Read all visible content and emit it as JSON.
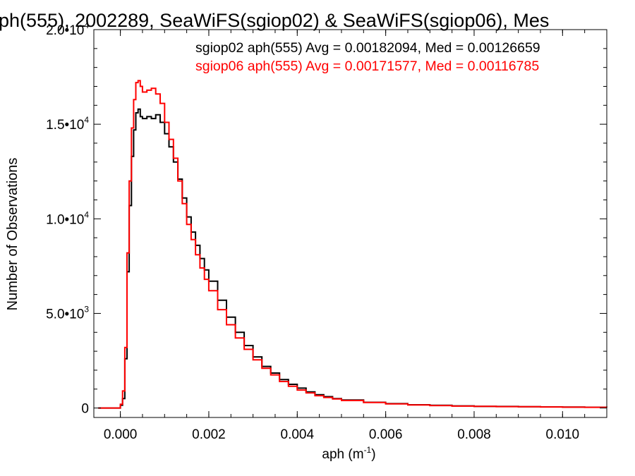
{
  "chart_data": {
    "type": "line",
    "title": "ph(555), 2002289, SeaWiFS(sgiop02) & SeaWiFS(sgiop06), Mes",
    "xlabel": "aph (m",
    "xlabel_sup": "-1",
    "xlabel_end": ")",
    "ylabel": "Number of Observations",
    "xlim": [
      -0.0006,
      0.011
    ],
    "ylim": [
      -500,
      20000
    ],
    "x_ticks": [
      {
        "value": 0.0,
        "label": "0.000"
      },
      {
        "value": 0.002,
        "label": "0.002"
      },
      {
        "value": 0.004,
        "label": "0.004"
      },
      {
        "value": 0.006,
        "label": "0.006"
      },
      {
        "value": 0.008,
        "label": "0.008"
      },
      {
        "value": 0.01,
        "label": "0.010"
      }
    ],
    "y_ticks": [
      {
        "value": 0,
        "label": "0",
        "exp": ""
      },
      {
        "value": 5000,
        "label": "5.0•10",
        "exp": "3"
      },
      {
        "value": 10000,
        "label": "1.0•10",
        "exp": "4"
      },
      {
        "value": 15000,
        "label": "1.5•10",
        "exp": "4"
      },
      {
        "value": 20000,
        "label": "2.0•10",
        "exp": "4"
      }
    ],
    "legend_position": "top-right",
    "series": [
      {
        "name": "sgiop02",
        "legend_text": "sgiop02 aph(555) Avg = 0.00182094, Med = 0.00126659",
        "color": "#000000",
        "x": [
          -0.0005,
          -0.0003,
          -0.0001,
          0.0,
          5e-05,
          0.0001,
          0.00015,
          0.0002,
          0.00025,
          0.0003,
          0.00035,
          0.0004,
          0.00045,
          0.0005,
          0.0006,
          0.0007,
          0.0008,
          0.0009,
          0.001,
          0.0011,
          0.0012,
          0.0013,
          0.0014,
          0.0015,
          0.0016,
          0.0017,
          0.0018,
          0.0019,
          0.002,
          0.0022,
          0.0024,
          0.0026,
          0.0028,
          0.003,
          0.0032,
          0.0034,
          0.0036,
          0.0038,
          0.004,
          0.0042,
          0.0044,
          0.0046,
          0.0048,
          0.005,
          0.0055,
          0.006,
          0.0065,
          0.007,
          0.0075,
          0.008,
          0.0085,
          0.009,
          0.0095,
          0.01,
          0.0105,
          0.011
        ],
        "y": [
          0,
          0,
          0,
          150,
          500,
          2600,
          7200,
          10700,
          13300,
          14700,
          15600,
          15800,
          15400,
          15300,
          15400,
          15300,
          15500,
          15100,
          14500,
          13800,
          13000,
          12100,
          11100,
          10100,
          9300,
          8600,
          7900,
          7300,
          6700,
          5700,
          4800,
          4000,
          3300,
          2700,
          2200,
          1850,
          1500,
          1250,
          1050,
          850,
          700,
          600,
          500,
          420,
          300,
          230,
          170,
          140,
          110,
          90,
          80,
          70,
          60,
          50,
          40,
          35
        ]
      },
      {
        "name": "sgiop06",
        "legend_text": "sgiop06 aph(555) Avg = 0.00171577, Med = 0.00116785",
        "color": "#ff0000",
        "x": [
          -0.0005,
          -0.0003,
          -0.0001,
          0.0,
          5e-05,
          0.0001,
          0.00015,
          0.0002,
          0.00025,
          0.0003,
          0.00035,
          0.0004,
          0.00045,
          0.0005,
          0.0006,
          0.0007,
          0.0008,
          0.0009,
          0.001,
          0.0011,
          0.0012,
          0.0013,
          0.0014,
          0.0015,
          0.0016,
          0.0017,
          0.0018,
          0.0019,
          0.002,
          0.0022,
          0.0024,
          0.0026,
          0.0028,
          0.003,
          0.0032,
          0.0034,
          0.0036,
          0.0038,
          0.004,
          0.0042,
          0.0044,
          0.0046,
          0.0048,
          0.005,
          0.0055,
          0.006,
          0.0065,
          0.007,
          0.0075,
          0.008,
          0.0085,
          0.009,
          0.0095,
          0.01,
          0.0105,
          0.011
        ],
        "y": [
          0,
          0,
          0,
          200,
          900,
          3200,
          8200,
          12000,
          14800,
          16300,
          17200,
          17300,
          17000,
          16700,
          16800,
          16900,
          16600,
          16100,
          15100,
          14200,
          13200,
          12000,
          10800,
          9700,
          8900,
          8100,
          7400,
          6800,
          6200,
          5200,
          4400,
          3700,
          3100,
          2550,
          2100,
          1750,
          1400,
          1150,
          950,
          800,
          650,
          560,
          480,
          400,
          290,
          220,
          160,
          130,
          100,
          85,
          75,
          65,
          55,
          45,
          38,
          32
        ]
      }
    ]
  }
}
